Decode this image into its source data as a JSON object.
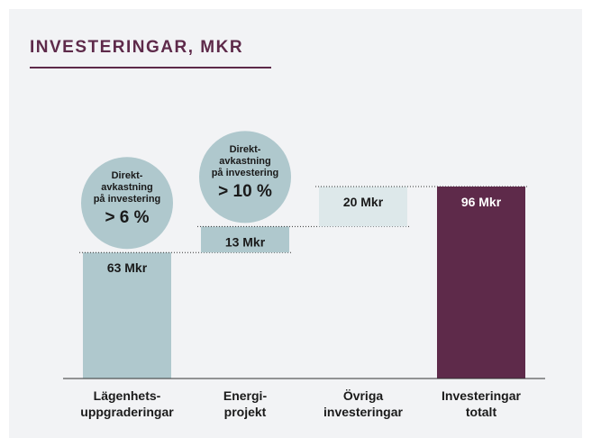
{
  "chart_data": {
    "type": "waterfall",
    "title": "INVESTERINGAR, MKR",
    "categories": [
      "Lägenhets-\nuppgraderingar",
      "Energi-\nprojekt",
      "Övriga\ninvesteringar",
      "Investeringar\ntotalt"
    ],
    "values": [
      63,
      13,
      20,
      96
    ],
    "value_labels": [
      "63 Mkr",
      "13 Mkr",
      "20 Mkr",
      "96 Mkr"
    ],
    "is_total": [
      false,
      false,
      false,
      true
    ],
    "colors": [
      "#afc8cd",
      "#afc8cd",
      "#dde8ea",
      "#5e2a4a"
    ],
    "label_colors": [
      "#1a1a1a",
      "#1a1a1a",
      "#1a1a1a",
      "#ffffff"
    ],
    "ylim": [
      0,
      96
    ],
    "annotations": [
      {
        "bar": 0,
        "text": "Direkt-\navkastning\npå investering",
        "highlight": "> 6 %"
      },
      {
        "bar": 1,
        "text": "Direkt-\navkastning\npå investering",
        "highlight": "> 10 %"
      }
    ]
  }
}
